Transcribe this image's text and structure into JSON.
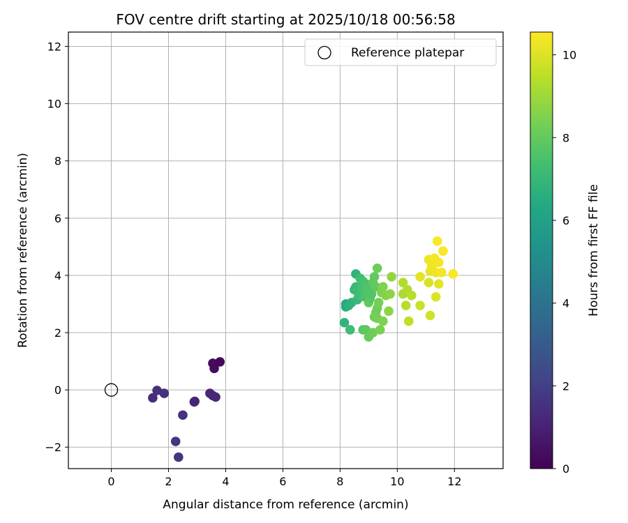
{
  "chart_data": {
    "type": "scatter",
    "title": "FOV centre drift starting at 2025/10/18 00:56:58",
    "xlabel": "Angular distance from reference (arcmin)",
    "ylabel": "Rotation from reference (arcmin)",
    "xlim": [
      -1.5,
      13.7
    ],
    "ylim": [
      -2.75,
      12.5
    ],
    "xticks": [
      0,
      2,
      4,
      6,
      8,
      10,
      12
    ],
    "yticks": [
      -2,
      0,
      2,
      4,
      6,
      8,
      10,
      12
    ],
    "grid": true,
    "legend": {
      "position": "top-right",
      "label": "Reference platepar"
    },
    "reference_point": {
      "x": 0,
      "y": 0
    },
    "colorbar": {
      "label": "Hours from first FF file",
      "min": 0,
      "max": 10.55,
      "ticks": [
        0,
        2,
        4,
        6,
        8,
        10
      ],
      "colormap": "viridis"
    },
    "points": [
      {
        "x": 1.45,
        "y": -0.28,
        "h": 1.4
      },
      {
        "x": 1.6,
        "y": -0.02,
        "h": 1.5
      },
      {
        "x": 1.85,
        "y": -0.12,
        "h": 1.5
      },
      {
        "x": 2.25,
        "y": -1.8,
        "h": 1.6
      },
      {
        "x": 2.35,
        "y": -2.35,
        "h": 1.6
      },
      {
        "x": 2.5,
        "y": -0.88,
        "h": 1.5
      },
      {
        "x": 2.9,
        "y": -0.42,
        "h": 1.1
      },
      {
        "x": 2.92,
        "y": -0.4,
        "h": 1.1
      },
      {
        "x": 3.45,
        "y": -0.12,
        "h": 1.2
      },
      {
        "x": 3.55,
        "y": -0.2,
        "h": 1.2
      },
      {
        "x": 3.65,
        "y": -0.25,
        "h": 1.2
      },
      {
        "x": 3.55,
        "y": 0.93,
        "h": 0.3
      },
      {
        "x": 3.6,
        "y": 0.75,
        "h": 0.3
      },
      {
        "x": 3.8,
        "y": 0.98,
        "h": 0.2
      },
      {
        "x": 8.15,
        "y": 2.35,
        "h": 6.9
      },
      {
        "x": 8.2,
        "y": 2.9,
        "h": 6.6
      },
      {
        "x": 8.2,
        "y": 3.0,
        "h": 6.4
      },
      {
        "x": 8.3,
        "y": 2.95,
        "h": 6.7
      },
      {
        "x": 8.35,
        "y": 2.1,
        "h": 7.2
      },
      {
        "x": 8.4,
        "y": 3.05,
        "h": 6.8
      },
      {
        "x": 8.5,
        "y": 3.5,
        "h": 7.0
      },
      {
        "x": 8.55,
        "y": 3.6,
        "h": 7.1
      },
      {
        "x": 8.55,
        "y": 4.05,
        "h": 6.8
      },
      {
        "x": 8.6,
        "y": 3.15,
        "h": 7.0
      },
      {
        "x": 8.65,
        "y": 3.3,
        "h": 7.2
      },
      {
        "x": 8.7,
        "y": 3.9,
        "h": 7.3
      },
      {
        "x": 8.75,
        "y": 3.55,
        "h": 7.4
      },
      {
        "x": 8.8,
        "y": 2.1,
        "h": 7.8
      },
      {
        "x": 8.8,
        "y": 3.8,
        "h": 7.4
      },
      {
        "x": 8.85,
        "y": 3.25,
        "h": 7.5
      },
      {
        "x": 8.9,
        "y": 3.7,
        "h": 7.5
      },
      {
        "x": 8.9,
        "y": 2.1,
        "h": 7.9
      },
      {
        "x": 8.95,
        "y": 3.4,
        "h": 7.6
      },
      {
        "x": 8.95,
        "y": 3.55,
        "h": 7.6
      },
      {
        "x": 9.0,
        "y": 1.85,
        "h": 8.1
      },
      {
        "x": 9.0,
        "y": 3.05,
        "h": 8.0
      },
      {
        "x": 9.05,
        "y": 3.2,
        "h": 7.8
      },
      {
        "x": 9.1,
        "y": 3.35,
        "h": 7.7
      },
      {
        "x": 9.15,
        "y": 2.0,
        "h": 8.2
      },
      {
        "x": 9.15,
        "y": 3.75,
        "h": 7.9
      },
      {
        "x": 9.2,
        "y": 3.95,
        "h": 8.0
      },
      {
        "x": 9.2,
        "y": 2.55,
        "h": 8.2
      },
      {
        "x": 9.25,
        "y": 2.7,
        "h": 8.3
      },
      {
        "x": 9.25,
        "y": 3.6,
        "h": 8.0
      },
      {
        "x": 9.3,
        "y": 2.5,
        "h": 8.3
      },
      {
        "x": 9.3,
        "y": 2.85,
        "h": 8.2
      },
      {
        "x": 9.3,
        "y": 4.25,
        "h": 8.2
      },
      {
        "x": 9.35,
        "y": 3.05,
        "h": 8.3
      },
      {
        "x": 9.4,
        "y": 2.1,
        "h": 8.4
      },
      {
        "x": 9.45,
        "y": 3.4,
        "h": 8.4
      },
      {
        "x": 9.5,
        "y": 2.4,
        "h": 8.5
      },
      {
        "x": 9.5,
        "y": 3.6,
        "h": 8.5
      },
      {
        "x": 9.6,
        "y": 3.3,
        "h": 8.6
      },
      {
        "x": 9.7,
        "y": 2.75,
        "h": 8.7
      },
      {
        "x": 9.75,
        "y": 3.35,
        "h": 8.7
      },
      {
        "x": 9.8,
        "y": 3.95,
        "h": 8.8
      },
      {
        "x": 10.2,
        "y": 3.75,
        "h": 9.3
      },
      {
        "x": 10.2,
        "y": 3.35,
        "h": 9.2
      },
      {
        "x": 10.3,
        "y": 2.95,
        "h": 9.4
      },
      {
        "x": 10.35,
        "y": 3.5,
        "h": 9.3
      },
      {
        "x": 10.4,
        "y": 2.4,
        "h": 9.5
      },
      {
        "x": 10.5,
        "y": 3.3,
        "h": 9.4
      },
      {
        "x": 10.8,
        "y": 2.95,
        "h": 9.7
      },
      {
        "x": 10.8,
        "y": 3.95,
        "h": 10.1
      },
      {
        "x": 11.1,
        "y": 3.75,
        "h": 9.9
      },
      {
        "x": 11.1,
        "y": 4.55,
        "h": 10.3
      },
      {
        "x": 11.15,
        "y": 2.6,
        "h": 9.8
      },
      {
        "x": 11.15,
        "y": 4.15,
        "h": 10.2
      },
      {
        "x": 11.2,
        "y": 4.3,
        "h": 10.3
      },
      {
        "x": 11.3,
        "y": 4.6,
        "h": 10.4
      },
      {
        "x": 11.35,
        "y": 3.25,
        "h": 10.0
      },
      {
        "x": 11.35,
        "y": 4.1,
        "h": 10.3
      },
      {
        "x": 11.4,
        "y": 5.2,
        "h": 10.5
      },
      {
        "x": 11.45,
        "y": 4.45,
        "h": 10.4
      },
      {
        "x": 11.45,
        "y": 3.7,
        "h": 10.1
      },
      {
        "x": 11.55,
        "y": 4.1,
        "h": 10.4
      },
      {
        "x": 11.6,
        "y": 4.85,
        "h": 10.5
      },
      {
        "x": 11.95,
        "y": 4.05,
        "h": 10.5
      }
    ]
  }
}
